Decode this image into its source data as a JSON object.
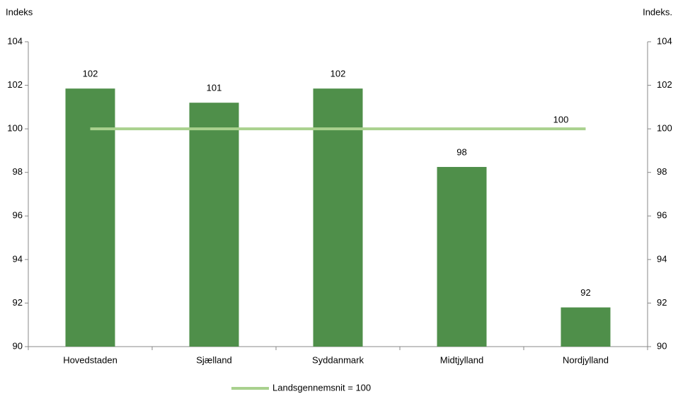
{
  "chart_data": {
    "type": "bar",
    "y_label": "Indeks",
    "y2_label": "Indeks.",
    "categories": [
      "Hovedstaden",
      "Sjælland",
      "Syddanmark",
      "Midtjylland",
      "Nordjylland"
    ],
    "series": [
      {
        "type": "bar",
        "color": "#4f8f4a",
        "values": [
          101.85,
          101.2,
          101.85,
          98.25,
          91.8
        ],
        "value_labels": [
          "102",
          "101",
          "102",
          "98",
          "92"
        ]
      },
      {
        "type": "line",
        "name": "Landsgennemsnit = 100",
        "color": "#a9d18e",
        "values": [
          100,
          100,
          100,
          100,
          100
        ],
        "value_labels": [
          null,
          null,
          null,
          null,
          "100"
        ]
      }
    ],
    "ylim": [
      90,
      104
    ],
    "yticks": [
      90,
      92,
      94,
      96,
      98,
      100,
      102,
      104
    ],
    "y2lim": [
      90,
      104
    ],
    "y2ticks": [
      90,
      92,
      94,
      96,
      98,
      100,
      102,
      104
    ],
    "legend": "bottom"
  }
}
